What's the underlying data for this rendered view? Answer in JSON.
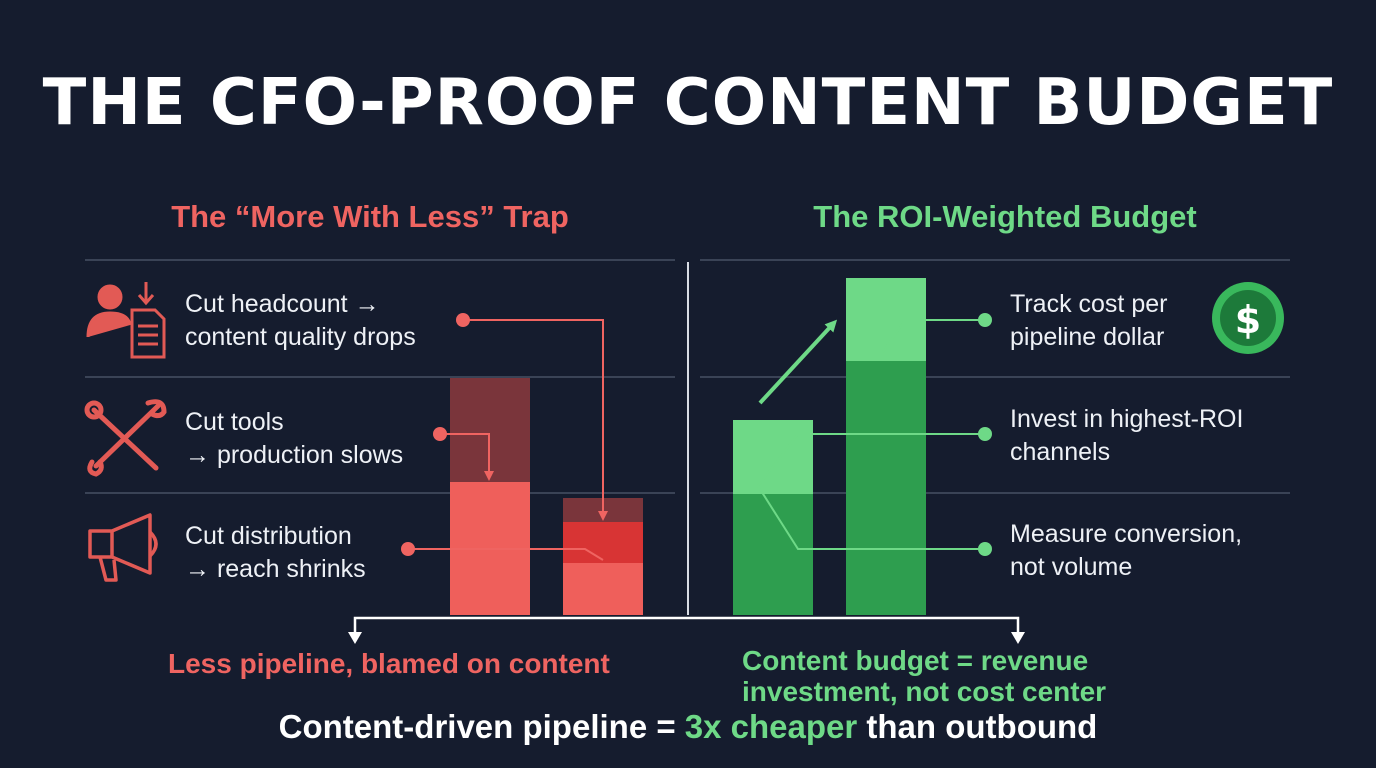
{
  "title": "THE CFO-PROOF CONTENT BUDGET",
  "left_panel": {
    "heading": "The “More With Less” Trap",
    "items": [
      {
        "icon": "person-document-icon",
        "line1": "Cut headcount →",
        "line2": "content quality drops"
      },
      {
        "icon": "wrench-screwdriver-icon",
        "line1": "Cut tools",
        "line2": "→ production slows"
      },
      {
        "icon": "megaphone-icon",
        "line1": "Cut distribution",
        "line2": "→ reach shrinks"
      }
    ],
    "outcome": "Less pipeline, blamed on content"
  },
  "right_panel": {
    "heading": "The ROI-Weighted Budget",
    "items": [
      {
        "line1": "Track cost per",
        "line2": "pipeline dollar",
        "icon": "dollar-coin-icon"
      },
      {
        "line1": "Invest in highest-ROI",
        "line2": "channels"
      },
      {
        "line1": "Measure conversion,",
        "line2": "not volume"
      }
    ],
    "outcome_line1": "Content budget = revenue",
    "outcome_line2": "investment, not cost center"
  },
  "bottom_line": {
    "prefix": "Content-driven pipeline = ",
    "highlight": "3x cheaper",
    "suffix": " than outbound"
  },
  "colors": {
    "background": "#151c2e",
    "red": "#ef6461",
    "red_dark": "#7a353b",
    "green": "#6ed987",
    "green_dark": "#2e9e4f"
  }
}
